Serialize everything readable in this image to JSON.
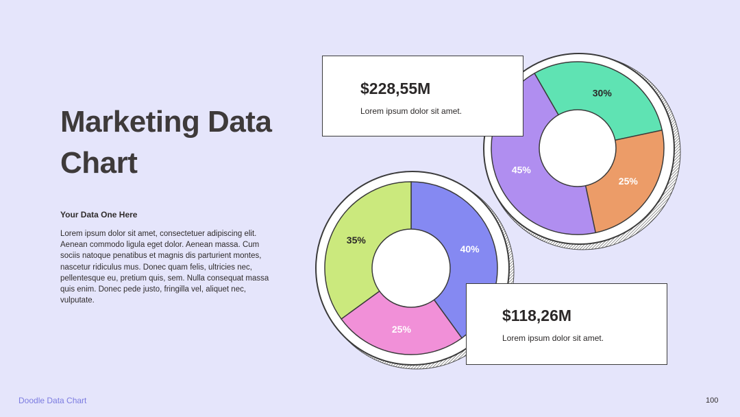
{
  "slide": {
    "title": "Marketing Data Chart",
    "subheading": "Your Data One Here",
    "body": "Lorem ipsum dolor sit amet, consectetuer adipiscing elit. Aenean commodo ligula eget dolor. Aenean massa. Cum sociis natoque penatibus et magnis dis parturient montes, nascetur ridiculus mus. Donec quam felis, ultricies nec, pellentesque eu, pretium quis, sem. Nulla consequat massa quis enim. Donec pede justo, fringilla vel, aliquet nec, vulputate.",
    "footer_label": "Doodle Data Chart",
    "page_number": "100"
  },
  "callouts": {
    "top": {
      "amount": "$228,55M",
      "text": "Lorem ipsum dolor sit amet."
    },
    "bottom": {
      "amount": "$118,26M",
      "text": "Lorem ipsum dolor sit amet."
    }
  },
  "chart_data": [
    {
      "type": "pie",
      "style": "donut",
      "title": "",
      "categories": [
        "30%",
        "25%",
        "45%"
      ],
      "values": [
        30,
        25,
        45
      ],
      "labels": [
        "30%",
        "25%",
        "45%"
      ],
      "colors": [
        "#5fe3b3",
        "#ec9c68",
        "#b08ef0"
      ],
      "label_colors": [
        "#2b2828",
        "#ffffff",
        "#ffffff"
      ]
    },
    {
      "type": "pie",
      "style": "donut",
      "title": "",
      "categories": [
        "40%",
        "25%",
        "35%"
      ],
      "values": [
        40,
        25,
        35
      ],
      "labels": [
        "40%",
        "25%",
        "35%"
      ],
      "colors": [
        "#8589f2",
        "#f190d8",
        "#cbe97d"
      ],
      "label_colors": [
        "#ffffff",
        "#ffffff",
        "#2b2828"
      ]
    }
  ]
}
